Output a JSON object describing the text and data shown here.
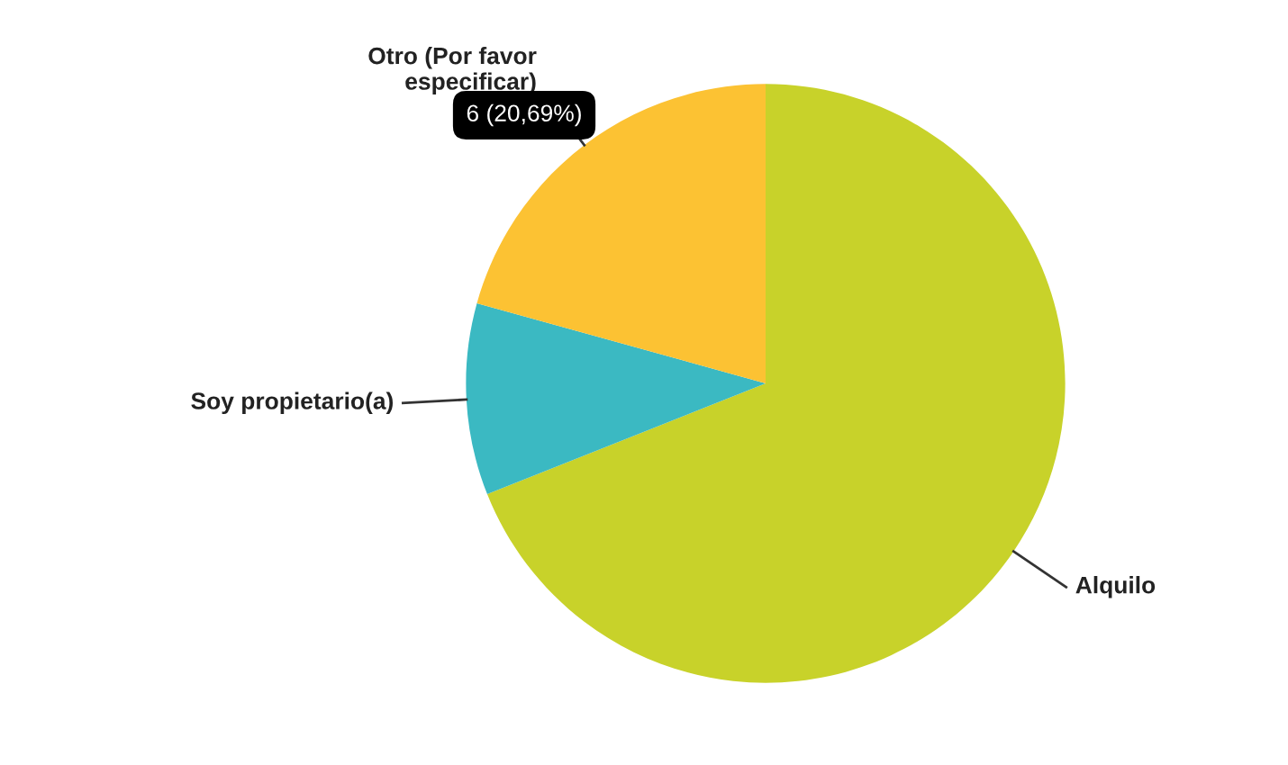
{
  "chart_data": {
    "type": "pie",
    "categories": [
      "Alquilo",
      "Soy propietario(a)",
      "Otro (Por favor\nespecificar)"
    ],
    "values": [
      68.97,
      10.34,
      20.69
    ],
    "colors": [
      "#c8d22a",
      "#3bb9c2",
      "#fcc233"
    ],
    "legend": false,
    "annotations": [
      "6 (20,69%)"
    ]
  }
}
